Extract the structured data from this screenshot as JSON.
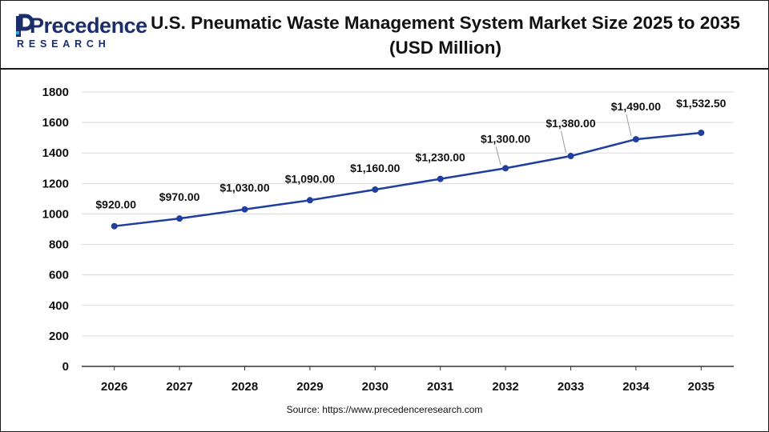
{
  "header": {
    "logo_word": "Precedence",
    "logo_sub": "RESEARCH",
    "title_line1": "U.S. Pneumatic Waste Management System Market Size 2025 to 2035",
    "title_line2": "(USD Million)"
  },
  "source": "Source: https://www.precedenceresearch.com",
  "colors": {
    "brand": "#1b2e6b",
    "accent": "#2a9fd6",
    "line": "#1f3e9e",
    "grid": "#d9d9d9",
    "text": "#111111"
  },
  "chart_data": {
    "type": "line",
    "categories": [
      "2026",
      "2027",
      "2028",
      "2029",
      "2030",
      "2031",
      "2032",
      "2033",
      "2034",
      "2035"
    ],
    "series": [
      {
        "values": [
          920,
          970,
          1030,
          1090,
          1160,
          1230,
          1300,
          1380,
          1490,
          1532.5
        ]
      }
    ],
    "data_labels": [
      "$920.00",
      "$970.00",
      "$1,030.00",
      "$1,090.00",
      "$1,160.00",
      "$1,230.00",
      "$1,300.00",
      "$1,380.00",
      "$1,490.00",
      "$1,532.50"
    ],
    "yticks": [
      0,
      200,
      400,
      600,
      800,
      1000,
      1200,
      1400,
      1600,
      1800
    ],
    "ylim": [
      0,
      1800
    ],
    "grid": "horizontal",
    "legend": "none",
    "xlabel": "",
    "ylabel": ""
  }
}
